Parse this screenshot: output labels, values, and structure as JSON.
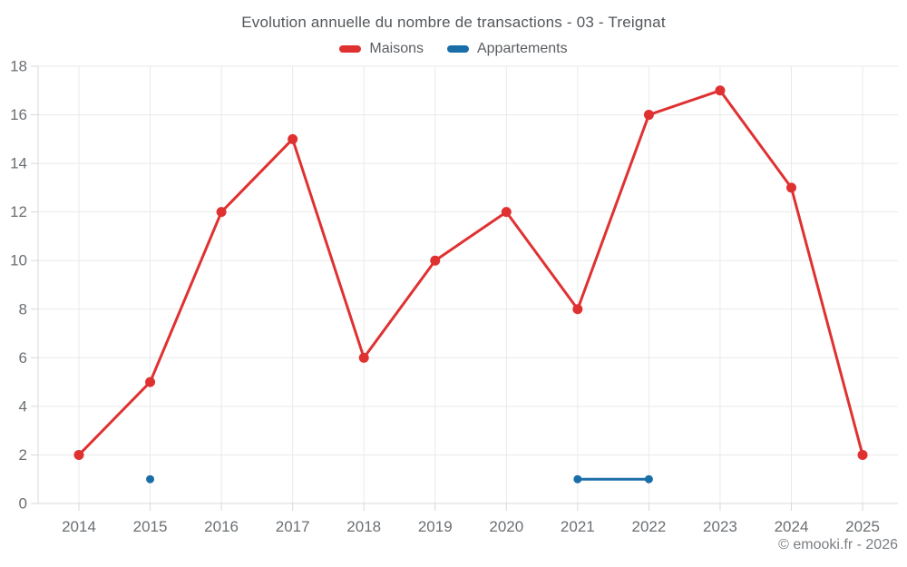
{
  "title": "Evolution annuelle du nombre de transactions - 03 - Treignat",
  "footer": "© emooki.fr - 2026",
  "legend": {
    "items": [
      {
        "label": "Maisons",
        "color": "#e03131"
      },
      {
        "label": "Appartements",
        "color": "#1a6ea8"
      }
    ],
    "position": "top"
  },
  "chart_data": {
    "type": "line",
    "title": "Evolution annuelle du nombre de transactions - 03 - Treignat",
    "categories": [
      "2014",
      "2015",
      "2016",
      "2017",
      "2018",
      "2019",
      "2020",
      "2021",
      "2022",
      "2023",
      "2024",
      "2025"
    ],
    "series": [
      {
        "name": "Maisons",
        "color": "#e03131",
        "values": [
          2,
          5,
          12,
          15,
          6,
          10,
          12,
          8,
          16,
          17,
          13,
          2
        ]
      },
      {
        "name": "Appartements",
        "color": "#1a6ea8",
        "values": [
          null,
          1,
          null,
          null,
          null,
          null,
          null,
          1,
          1,
          null,
          null,
          null
        ]
      }
    ],
    "xlabel": "",
    "ylabel": "",
    "ylim": [
      0,
      18
    ],
    "ytick_step": 2,
    "yticks": [
      0,
      2,
      4,
      6,
      8,
      10,
      12,
      14,
      16,
      18
    ],
    "grid": true,
    "legend_position": "top"
  },
  "colors": {
    "background": "#ffffff",
    "grid": "#e9eaec",
    "axis": "#d6d9db",
    "axis_text": "#6b6f73",
    "title_text": "#53575b",
    "legend_text": "#5a5e62",
    "footer_text": "#7a7e82",
    "maisons": "#e03131",
    "appartements": "#1a6ea8"
  }
}
